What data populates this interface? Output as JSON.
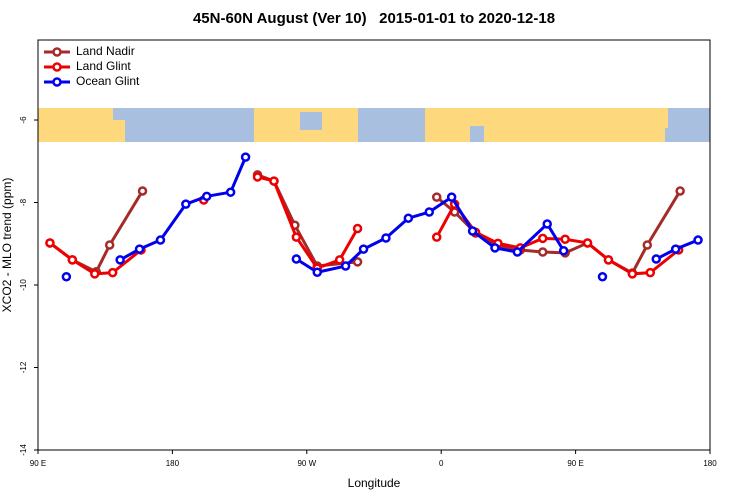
{
  "chart_data": {
    "type": "line",
    "title": "45N-60N August (Ver 10)   2015-01-01 to 2020-12-18",
    "xlabel": "Longitude",
    "ylabel": "XCO2 - MLO trend (ppm)",
    "xlim": [
      90,
      540
    ],
    "ylim": [
      -14,
      -4.06
    ],
    "xticks": [
      {
        "value": 90,
        "label": "90 E"
      },
      180,
      {
        "value": 270,
        "label": "90 W"
      },
      {
        "value": 360,
        "label": "0"
      },
      {
        "value": 450,
        "label": "90 E"
      },
      {
        "value": 540,
        "label": "180"
      }
    ],
    "yticks": [
      -14,
      -12,
      -10,
      -8,
      -6
    ],
    "legend": "upper left",
    "series": [
      {
        "name": "Land Nadir",
        "color": "#a52a2a",
        "x": [
          98,
          113,
          129,
          138,
          160,
          null,
          237,
          248,
          262,
          277,
          304,
          null,
          357,
          369,
          383,
          398,
          413,
          428,
          443,
          458,
          472,
          488,
          498,
          520
        ],
        "values": [
          -8.98,
          -9.39,
          -9.68,
          -9.03,
          -7.72,
          null,
          -7.33,
          -7.48,
          -8.55,
          -9.54,
          -9.44,
          null,
          -7.87,
          -8.23,
          -8.74,
          -9.05,
          -9.15,
          -9.2,
          -9.22,
          -8.98,
          -9.39,
          -9.71,
          -9.03,
          -7.72
        ]
      },
      {
        "name": "Land Glint",
        "color": "#ee0000",
        "x": [
          98,
          113,
          128,
          140,
          159,
          null,
          201,
          null,
          237,
          248,
          263,
          277,
          292,
          304,
          null,
          357,
          369,
          383,
          398,
          413,
          428,
          443,
          458,
          472,
          488,
          500,
          519
        ],
        "values": [
          -8.98,
          -9.39,
          -9.73,
          -9.7,
          -9.15,
          null,
          -7.94,
          null,
          -7.38,
          -7.48,
          -8.84,
          -9.59,
          -9.39,
          -8.63,
          null,
          -8.84,
          -8.04,
          -8.72,
          -8.99,
          -9.1,
          -8.87,
          -8.89,
          -8.98,
          -9.39,
          -9.73,
          -9.7,
          -9.15
        ]
      },
      {
        "name": "Ocean Glint",
        "color": "#0000ee",
        "x": [
          109,
          null,
          145,
          158,
          172,
          189,
          203,
          219,
          229,
          null,
          263,
          277,
          296,
          308,
          323,
          338,
          352,
          367,
          381,
          396,
          411,
          431,
          442,
          null,
          468,
          null,
          504,
          517,
          532
        ],
        "values": [
          -9.8,
          null,
          -9.39,
          -9.13,
          -8.91,
          -8.04,
          -7.85,
          -7.75,
          -6.9,
          null,
          -9.37,
          -9.69,
          -9.54,
          -9.13,
          -8.86,
          -8.38,
          -8.23,
          -7.87,
          -8.69,
          -9.1,
          -9.2,
          -8.52,
          -9.17,
          null,
          -9.8,
          null,
          -9.37,
          -9.13,
          -8.91
        ]
      }
    ]
  }
}
